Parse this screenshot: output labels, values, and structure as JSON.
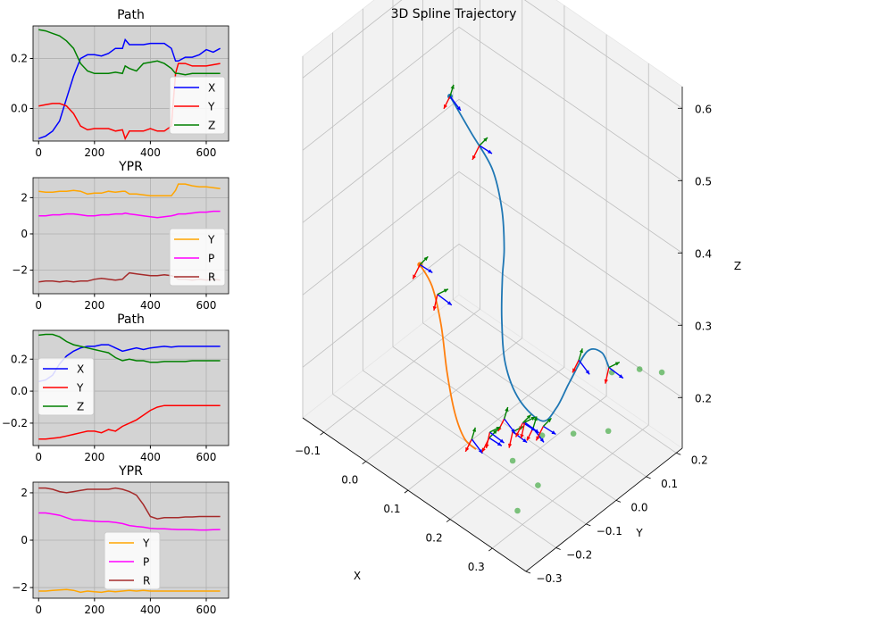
{
  "colors": {
    "X": "#0000ff",
    "Y": "#ff0000",
    "Z": "#008000",
    "Yaw": "#ffa500",
    "Pitch": "#ff00ff",
    "Roll": "#a52a2a",
    "spline1": "#1f77b4",
    "spline2": "#ff7f0e",
    "panel_bg": "#d3d3d3",
    "pane": "#f2f2f2",
    "grid": "#bfbfbf",
    "scatter": "#2ca02c"
  },
  "chart_data": [
    {
      "type": "line",
      "title": "Path",
      "grid": true,
      "legend": "center-right",
      "xlim": [
        -20,
        680
      ],
      "ylim": [
        -0.13,
        0.33
      ],
      "xticks": [
        "0",
        "200",
        "400",
        "600"
      ],
      "yticks": [
        "0.0",
        "0.2"
      ],
      "x": [
        0,
        25,
        50,
        75,
        100,
        125,
        150,
        175,
        200,
        225,
        250,
        275,
        300,
        310,
        325,
        350,
        375,
        400,
        425,
        450,
        475,
        490,
        500,
        525,
        550,
        575,
        600,
        625,
        650
      ],
      "series": [
        {
          "name": "X",
          "color_key": "X",
          "values": [
            -0.12,
            -0.11,
            -0.09,
            -0.05,
            0.04,
            0.13,
            0.2,
            0.215,
            0.215,
            0.21,
            0.22,
            0.24,
            0.24,
            0.275,
            0.255,
            0.255,
            0.255,
            0.26,
            0.26,
            0.26,
            0.24,
            0.19,
            0.19,
            0.205,
            0.205,
            0.215,
            0.235,
            0.225,
            0.24
          ]
        },
        {
          "name": "Y",
          "color_key": "Y",
          "values": [
            0.01,
            0.015,
            0.02,
            0.02,
            0.01,
            -0.02,
            -0.07,
            -0.085,
            -0.08,
            -0.08,
            -0.08,
            -0.09,
            -0.085,
            -0.12,
            -0.09,
            -0.09,
            -0.09,
            -0.08,
            -0.09,
            -0.09,
            -0.07,
            0.14,
            0.18,
            0.18,
            0.17,
            0.17,
            0.17,
            0.175,
            0.18
          ]
        },
        {
          "name": "Z",
          "color_key": "Z",
          "values": [
            0.315,
            0.31,
            0.3,
            0.29,
            0.27,
            0.24,
            0.18,
            0.15,
            0.14,
            0.14,
            0.14,
            0.145,
            0.14,
            0.17,
            0.16,
            0.15,
            0.18,
            0.185,
            0.19,
            0.18,
            0.16,
            0.14,
            0.14,
            0.135,
            0.14,
            0.14,
            0.14,
            0.14,
            0.14
          ]
        }
      ]
    },
    {
      "type": "line",
      "title": "YPR",
      "grid": true,
      "legend": "lower-right",
      "xlim": [
        -20,
        680
      ],
      "ylim": [
        -3.3,
        3.1
      ],
      "xticks": [
        "0",
        "200",
        "400",
        "600"
      ],
      "yticks": [
        "−2",
        "0",
        "2"
      ],
      "x": [
        0,
        25,
        50,
        75,
        100,
        125,
        150,
        175,
        200,
        225,
        250,
        275,
        300,
        310,
        325,
        350,
        375,
        400,
        425,
        450,
        475,
        490,
        500,
        525,
        550,
        575,
        600,
        625,
        650
      ],
      "series": [
        {
          "name": "Y",
          "color_key": "Yaw",
          "values": [
            2.35,
            2.3,
            2.3,
            2.35,
            2.35,
            2.4,
            2.35,
            2.2,
            2.25,
            2.25,
            2.35,
            2.3,
            2.35,
            2.35,
            2.2,
            2.2,
            2.15,
            2.1,
            2.1,
            2.1,
            2.1,
            2.4,
            2.75,
            2.75,
            2.65,
            2.6,
            2.6,
            2.55,
            2.5
          ]
        },
        {
          "name": "P",
          "color_key": "Pitch",
          "values": [
            1.0,
            1.0,
            1.05,
            1.05,
            1.1,
            1.1,
            1.05,
            1.0,
            1.0,
            1.05,
            1.05,
            1.1,
            1.1,
            1.15,
            1.1,
            1.05,
            1.0,
            0.95,
            0.9,
            0.95,
            1.0,
            1.05,
            1.1,
            1.1,
            1.15,
            1.2,
            1.2,
            1.25,
            1.25
          ]
        },
        {
          "name": "R",
          "color_key": "Roll",
          "values": [
            -2.65,
            -2.6,
            -2.6,
            -2.65,
            -2.6,
            -2.65,
            -2.6,
            -2.6,
            -2.5,
            -2.45,
            -2.5,
            -2.55,
            -2.5,
            -2.35,
            -2.15,
            -2.2,
            -2.25,
            -2.3,
            -2.3,
            -2.25,
            -2.3,
            -2.4,
            -2.5,
            -2.5,
            -2.55,
            -2.5,
            -2.55,
            -2.5,
            -2.55
          ]
        }
      ]
    },
    {
      "type": "line",
      "title": "Path",
      "grid": true,
      "legend": "center-left",
      "xlim": [
        -20,
        680
      ],
      "ylim": [
        -0.34,
        0.38
      ],
      "xticks": [
        "0",
        "200",
        "400",
        "600"
      ],
      "yticks": [
        "−0.2",
        "0.0",
        "0.2"
      ],
      "x": [
        0,
        25,
        50,
        75,
        100,
        125,
        150,
        175,
        200,
        225,
        250,
        275,
        300,
        325,
        350,
        375,
        400,
        425,
        450,
        475,
        500,
        525,
        550,
        575,
        600,
        625,
        650
      ],
      "series": [
        {
          "name": "X",
          "color_key": "X",
          "values": [
            0.06,
            0.07,
            0.1,
            0.17,
            0.22,
            0.25,
            0.27,
            0.28,
            0.28,
            0.29,
            0.29,
            0.27,
            0.25,
            0.26,
            0.27,
            0.26,
            0.27,
            0.275,
            0.28,
            0.275,
            0.28,
            0.28,
            0.28,
            0.28,
            0.28,
            0.28,
            0.28
          ]
        },
        {
          "name": "Y",
          "color_key": "Y",
          "values": [
            -0.3,
            -0.3,
            -0.295,
            -0.29,
            -0.28,
            -0.27,
            -0.26,
            -0.25,
            -0.25,
            -0.26,
            -0.24,
            -0.25,
            -0.22,
            -0.2,
            -0.18,
            -0.15,
            -0.12,
            -0.1,
            -0.09,
            -0.09,
            -0.09,
            -0.09,
            -0.09,
            -0.09,
            -0.09,
            -0.09,
            -0.09
          ]
        },
        {
          "name": "Z",
          "color_key": "Z",
          "values": [
            0.35,
            0.355,
            0.355,
            0.34,
            0.31,
            0.29,
            0.28,
            0.27,
            0.26,
            0.25,
            0.24,
            0.21,
            0.19,
            0.2,
            0.19,
            0.19,
            0.18,
            0.18,
            0.185,
            0.185,
            0.185,
            0.185,
            0.19,
            0.19,
            0.19,
            0.19,
            0.19
          ]
        }
      ]
    },
    {
      "type": "line",
      "title": "YPR",
      "grid": true,
      "legend": "lower-center",
      "xlim": [
        -20,
        680
      ],
      "ylim": [
        -2.45,
        2.45
      ],
      "xticks": [
        "0",
        "200",
        "400",
        "600"
      ],
      "yticks": [
        "−2",
        "0",
        "2"
      ],
      "x": [
        0,
        25,
        50,
        75,
        100,
        125,
        150,
        175,
        200,
        225,
        250,
        275,
        300,
        325,
        350,
        375,
        400,
        425,
        450,
        475,
        500,
        525,
        550,
        575,
        600,
        625,
        650
      ],
      "series": [
        {
          "name": "Y",
          "color_key": "Yaw",
          "values": [
            -2.15,
            -2.15,
            -2.12,
            -2.1,
            -2.08,
            -2.12,
            -2.2,
            -2.15,
            -2.18,
            -2.2,
            -2.15,
            -2.18,
            -2.15,
            -2.12,
            -2.15,
            -2.12,
            -2.15,
            -2.15,
            -2.15,
            -2.15,
            -2.15,
            -2.15,
            -2.15,
            -2.15,
            -2.15,
            -2.15,
            -2.15
          ]
        },
        {
          "name": "P",
          "color_key": "Pitch",
          "values": [
            1.15,
            1.15,
            1.1,
            1.05,
            0.95,
            0.85,
            0.85,
            0.82,
            0.8,
            0.78,
            0.78,
            0.75,
            0.7,
            0.62,
            0.58,
            0.55,
            0.5,
            0.48,
            0.48,
            0.46,
            0.45,
            0.45,
            0.44,
            0.43,
            0.43,
            0.44,
            0.45
          ]
        },
        {
          "name": "R",
          "color_key": "Roll",
          "values": [
            2.2,
            2.2,
            2.15,
            2.05,
            2.0,
            2.05,
            2.1,
            2.15,
            2.15,
            2.15,
            2.15,
            2.2,
            2.15,
            2.05,
            1.9,
            1.5,
            1.0,
            0.9,
            0.95,
            0.95,
            0.95,
            0.98,
            0.98,
            1.0,
            1.0,
            1.0,
            1.0
          ]
        }
      ]
    },
    {
      "type": "line3d",
      "title": "3D Spline Trajectory",
      "xlabel": "X",
      "ylabel": "Y",
      "zlabel": "Z",
      "xlim": [
        -0.15,
        0.38
      ],
      "ylim": [
        -0.3,
        0.22
      ],
      "zlim": [
        0.13,
        0.63
      ],
      "xticks": [
        "−0.1",
        "0.0",
        "0.1",
        "0.2",
        "0.3"
      ],
      "yticks": [
        "−0.3",
        "−0.2",
        "−0.1",
        "0.0",
        "0.1",
        "0.2"
      ],
      "zticks": [
        "0.2",
        "0.3",
        "0.4",
        "0.5",
        "0.6"
      ],
      "series": [
        {
          "name": "",
          "color_key": "spline1",
          "points": [
            [
              -0.05,
              0.05,
              0.5
            ],
            [
              0.0,
              0.05,
              0.47
            ],
            [
              0.05,
              0.05,
              0.44
            ],
            [
              0.08,
              0.04,
              0.4
            ],
            [
              0.1,
              0.02,
              0.36
            ],
            [
              0.11,
              0.0,
              0.33
            ],
            [
              0.13,
              -0.03,
              0.29
            ],
            [
              0.16,
              -0.06,
              0.25
            ],
            [
              0.2,
              -0.07,
              0.22
            ],
            [
              0.24,
              -0.05,
              0.2
            ],
            [
              0.26,
              -0.03,
              0.22
            ],
            [
              0.27,
              0.0,
              0.25
            ],
            [
              0.29,
              0.03,
              0.29
            ],
            [
              0.31,
              0.05,
              0.29
            ],
            [
              0.32,
              0.06,
              0.27
            ]
          ]
        },
        {
          "name": "",
          "color_key": "spline2",
          "points": [
            [
              -0.05,
              -0.05,
              0.3
            ],
            [
              0.0,
              -0.08,
              0.3
            ],
            [
              0.05,
              -0.12,
              0.28
            ],
            [
              0.1,
              -0.17,
              0.25
            ],
            [
              0.14,
              -0.2,
              0.22
            ],
            [
              0.17,
              -0.21,
              0.2
            ],
            [
              0.19,
              -0.2,
              0.19
            ]
          ]
        }
      ],
      "scatter": [
        {
          "color_key": "scatter",
          "points": [
            [
              0.32,
              0.07,
              0.26
            ],
            [
              0.35,
              0.12,
              0.26
            ],
            [
              0.36,
              0.18,
              0.24
            ],
            [
              0.24,
              -0.05,
              0.18
            ],
            [
              0.3,
              -0.03,
              0.2
            ],
            [
              0.34,
              0.03,
              0.2
            ],
            [
              0.22,
              -0.12,
              0.16
            ],
            [
              0.28,
              -0.12,
              0.15
            ],
            [
              0.26,
              -0.16,
              0.12
            ]
          ]
        }
      ],
      "frames": [
        {
          "at": [
            -0.05,
            0.05,
            0.5
          ]
        },
        {
          "at": [
            0.02,
            0.05,
            0.46
          ]
        },
        {
          "at": [
            0.32,
            0.06,
            0.27
          ]
        },
        {
          "at": [
            0.27,
            0.03,
            0.27
          ]
        },
        {
          "at": [
            -0.05,
            -0.05,
            0.3
          ]
        },
        {
          "at": [
            0.02,
            -0.09,
            0.3
          ]
        },
        {
          "at": [
            0.18,
            -0.2,
            0.2
          ]
        },
        {
          "at": [
            0.2,
            -0.17,
            0.2
          ]
        },
        {
          "at": [
            0.22,
            -0.12,
            0.2
          ]
        },
        {
          "at": [
            0.24,
            -0.08,
            0.2
          ]
        },
        {
          "at": [
            0.23,
            -0.1,
            0.21
          ]
        },
        {
          "at": [
            0.22,
            -0.08,
            0.2
          ]
        },
        {
          "at": [
            0.2,
            -0.12,
            0.21
          ]
        },
        {
          "at": [
            0.25,
            -0.06,
            0.2
          ]
        },
        {
          "at": [
            0.18,
            -0.14,
            0.19
          ]
        }
      ]
    }
  ]
}
